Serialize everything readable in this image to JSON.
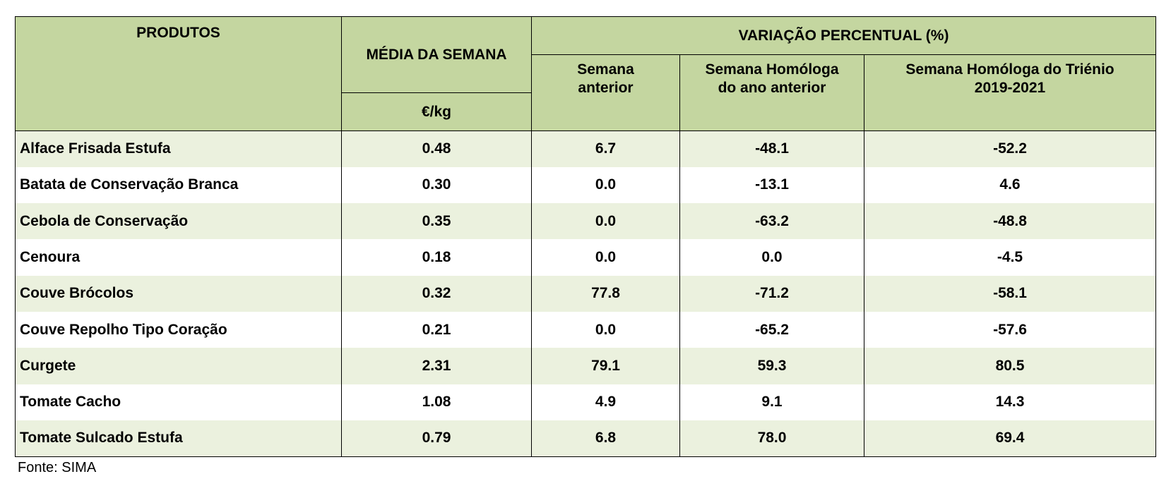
{
  "table": {
    "headers": {
      "products": "PRODUTOS",
      "weekly_average": "MÉDIA DA SEMANA",
      "unit": "€/kg",
      "variation": "VARIAÇÃO PERCENTUAL (%)",
      "previous_week": "Semana\nanterior",
      "same_week_prev_year": "Semana Homóloga\ndo ano anterior",
      "same_week_triennium": "Semana Homóloga do Triénio\n2019-2021"
    },
    "rows": [
      [
        "Alface Frisada Estufa",
        "0.48",
        "6.7",
        "-48.1",
        "-52.2"
      ],
      [
        "Batata de Conservação Branca",
        "0.30",
        "0.0",
        "-13.1",
        "4.6"
      ],
      [
        "Cebola de Conservação",
        "0.35",
        "0.0",
        "-63.2",
        "-48.8"
      ],
      [
        "Cenoura",
        "0.18",
        "0.0",
        "0.0",
        "-4.5"
      ],
      [
        "Couve Brócolos",
        "0.32",
        "77.8",
        "-71.2",
        "-58.1"
      ],
      [
        "Couve Repolho Tipo Coração",
        "0.21",
        "0.0",
        "-65.2",
        "-57.6"
      ],
      [
        "Curgete",
        "2.31",
        "79.1",
        "59.3",
        "80.5"
      ],
      [
        "Tomate Cacho",
        "1.08",
        "4.9",
        "9.1",
        "14.3"
      ],
      [
        "Tomate Sulcado Estufa",
        "0.79",
        "6.8",
        "78.0",
        "69.4"
      ]
    ]
  },
  "source": "Fonte: SIMA"
}
